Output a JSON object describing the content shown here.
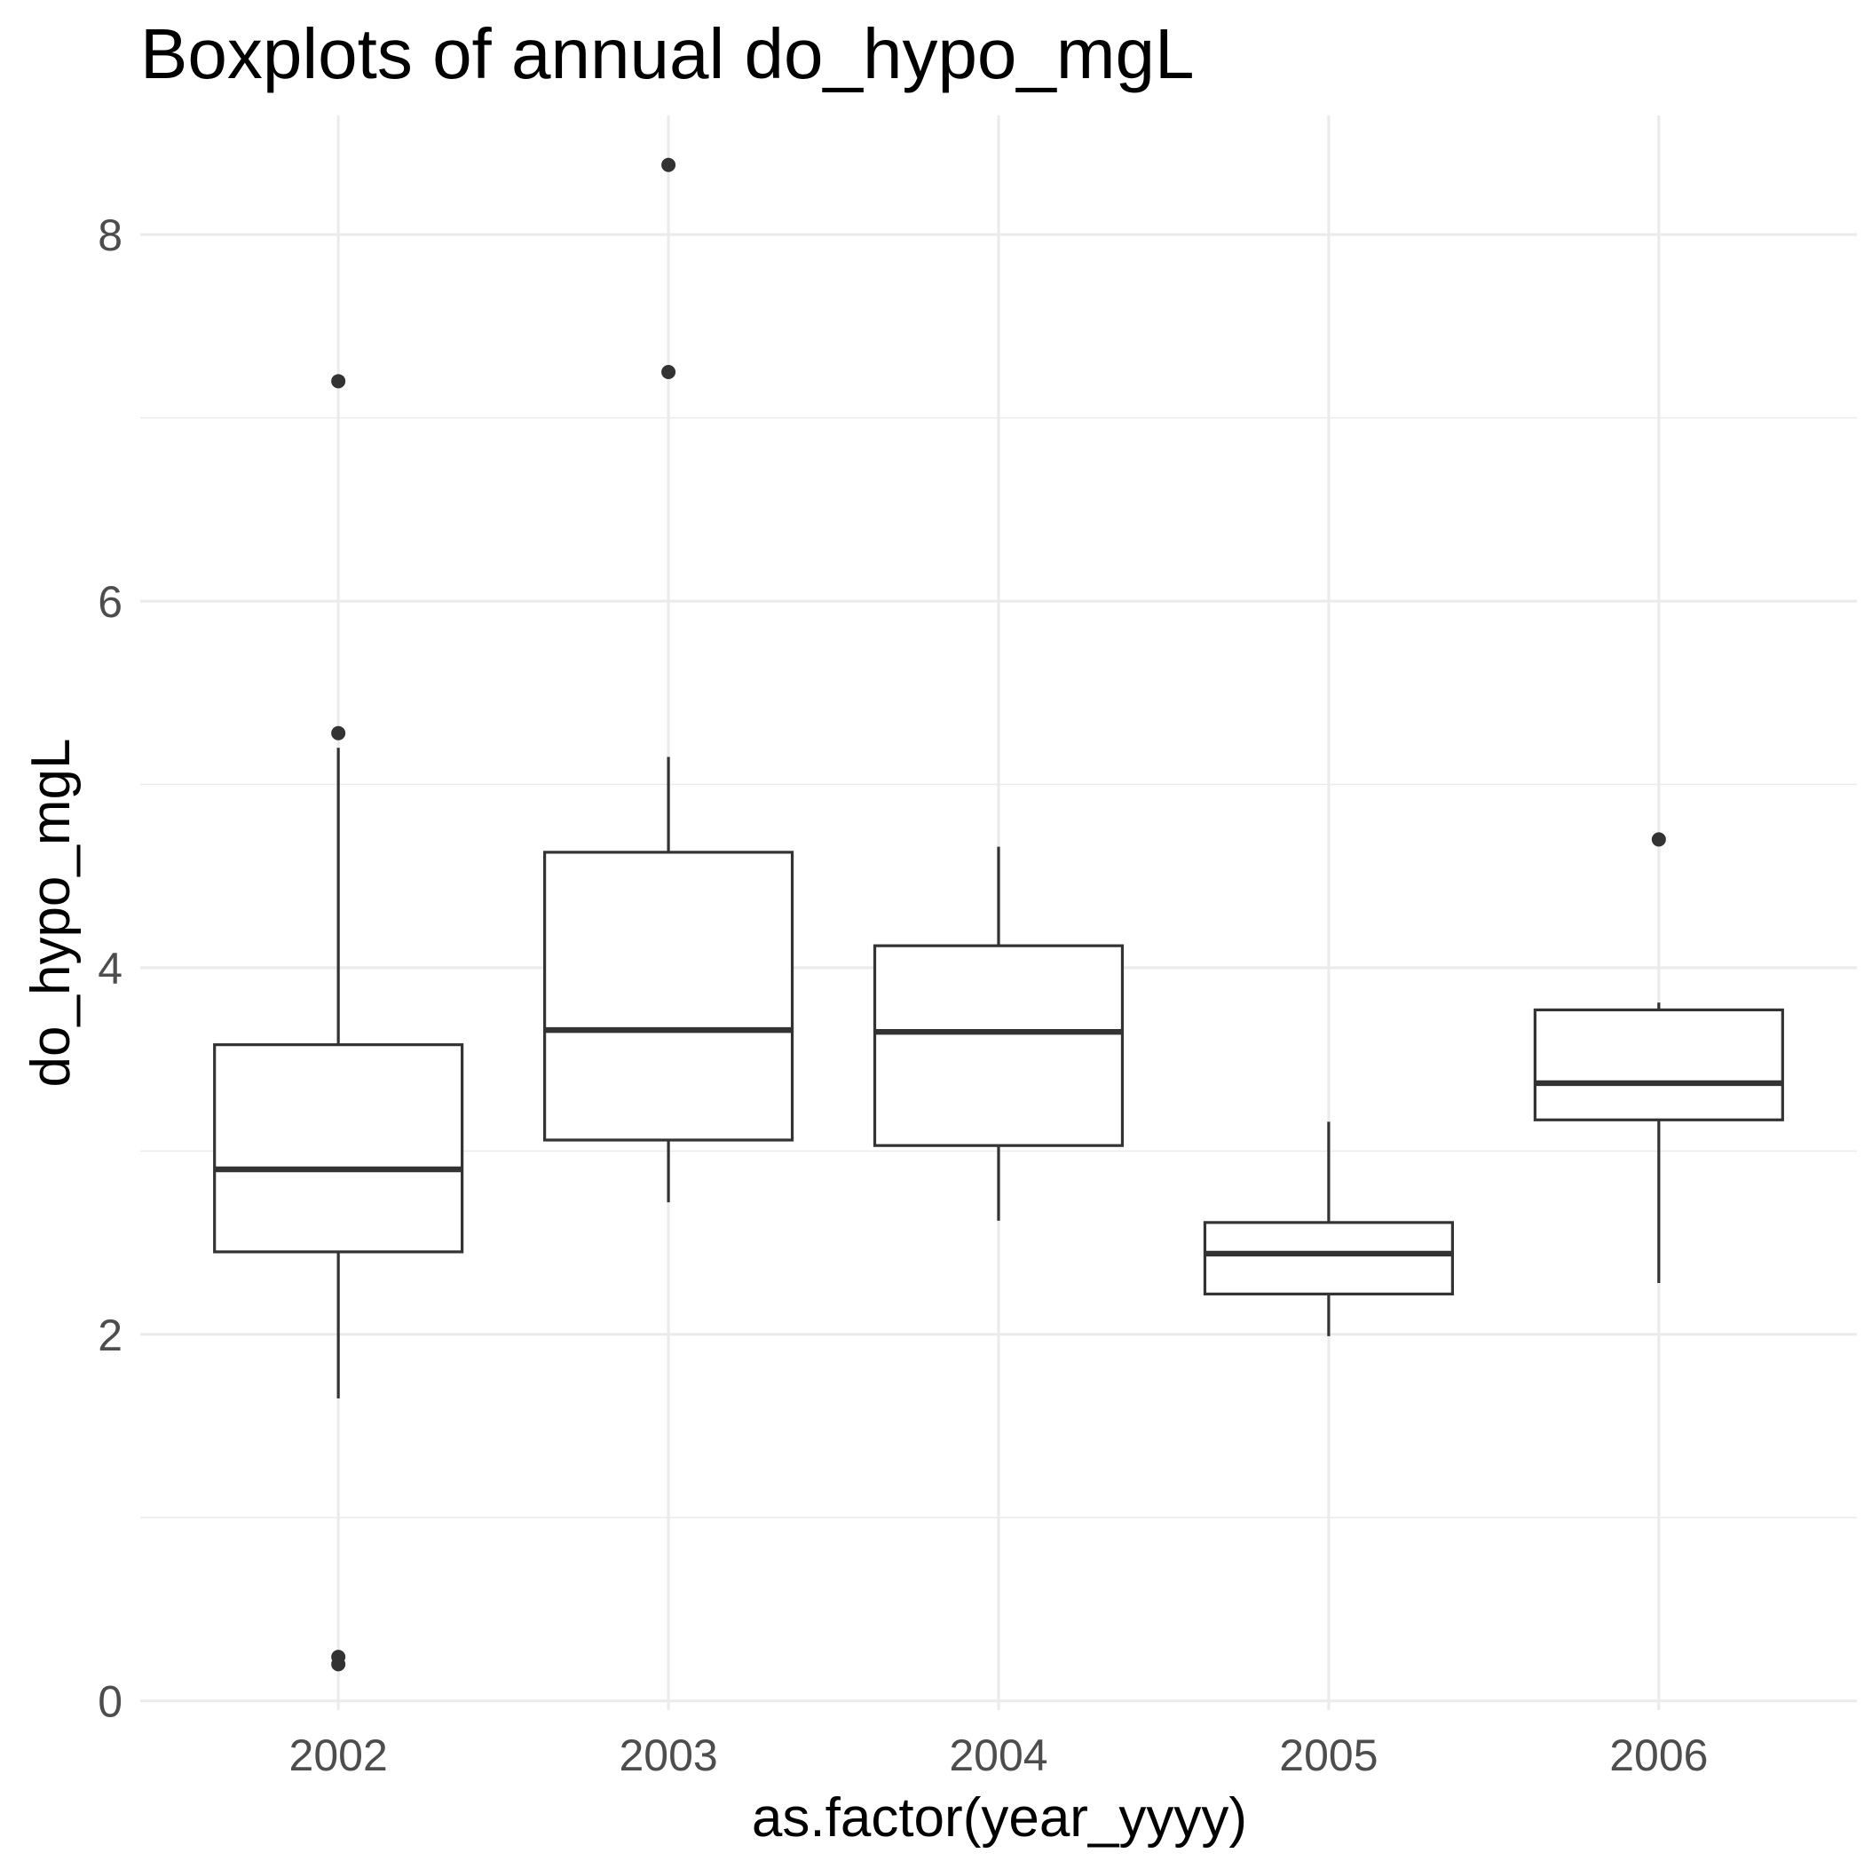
{
  "chart_data": {
    "type": "boxplot",
    "title": "Boxplots of annual do_hypo_mgL",
    "xlabel": "as.factor(year_yyyy)",
    "ylabel": "do_hypo_mgL",
    "ylim": [
      -0.05,
      8.65
    ],
    "y_major_ticks": [
      0,
      2,
      4,
      6,
      8
    ],
    "y_minor_ticks": [
      1,
      3,
      5,
      7
    ],
    "grid": true,
    "categories": [
      "2002",
      "2003",
      "2004",
      "2005",
      "2006"
    ],
    "boxes": [
      {
        "category": "2002",
        "whisker_low": 1.65,
        "q1": 2.45,
        "median": 2.9,
        "q3": 3.58,
        "whisker_high": 5.2,
        "outliers": [
          7.2,
          5.28,
          0.24,
          0.2
        ]
      },
      {
        "category": "2003",
        "whisker_low": 2.72,
        "q1": 3.06,
        "median": 3.66,
        "q3": 4.63,
        "whisker_high": 5.15,
        "outliers": [
          8.38,
          7.25
        ]
      },
      {
        "category": "2004",
        "whisker_low": 2.62,
        "q1": 3.03,
        "median": 3.65,
        "q3": 4.12,
        "whisker_high": 4.66,
        "outliers": []
      },
      {
        "category": "2005",
        "whisker_low": 1.99,
        "q1": 2.22,
        "median": 2.44,
        "q3": 2.61,
        "whisker_high": 3.16,
        "outliers": []
      },
      {
        "category": "2006",
        "whisker_low": 2.28,
        "q1": 3.17,
        "median": 3.37,
        "q3": 3.77,
        "whisker_high": 3.81,
        "outliers": [
          4.7
        ]
      }
    ]
  }
}
